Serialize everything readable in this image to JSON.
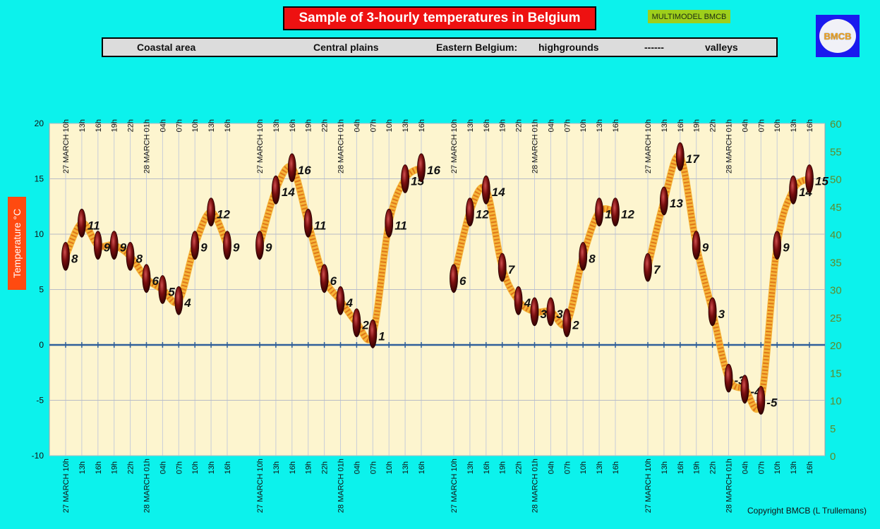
{
  "header": {
    "title": "Sample of 3-hourly temperatures in Belgium",
    "badge": "MULTIMODEL BMCB",
    "logo_text": "BMCB"
  },
  "regions": {
    "coastal": "Coastal area",
    "central": "Central plains",
    "eastern": "Eastern Belgium:",
    "highgrounds": "highgrounds",
    "separator": "------",
    "valleys": "valleys"
  },
  "copyright": "Copyright BMCB (L Trullemans)",
  "chart_data": {
    "type": "line",
    "ylabel": "Temperature  °C",
    "ylim": [
      -10,
      20
    ],
    "y_ticks": [
      "-10",
      "-5",
      "0",
      "5",
      "10",
      "15",
      "20"
    ],
    "y2lim": [
      0,
      60
    ],
    "y2_ticks": [
      "0",
      "5",
      "10",
      "15",
      "20",
      "25",
      "30",
      "35",
      "40",
      "45",
      "50",
      "55",
      "60"
    ],
    "grid": true,
    "x_tick_labels": [
      "27 MARCH 10h",
      "13h",
      "16h",
      "19h",
      "22h",
      "28 MARCH 01h",
      "04h",
      "07h",
      "10h",
      "13h",
      "16h"
    ],
    "series": [
      {
        "name": "Coastal area",
        "values": [
          8,
          11,
          9,
          9,
          8,
          6,
          5,
          4,
          9,
          12,
          9
        ]
      },
      {
        "name": "Central plains",
        "values": [
          9,
          14,
          16,
          11,
          6,
          4,
          2,
          1,
          11,
          15,
          16
        ]
      },
      {
        "name": "highgrounds",
        "values": [
          6,
          12,
          14,
          7,
          4,
          3,
          3,
          2,
          8,
          12,
          12
        ]
      },
      {
        "name": "valleys",
        "values": [
          7,
          13,
          17,
          9,
          3,
          -3,
          -4,
          -5,
          9,
          14,
          15
        ]
      }
    ]
  }
}
